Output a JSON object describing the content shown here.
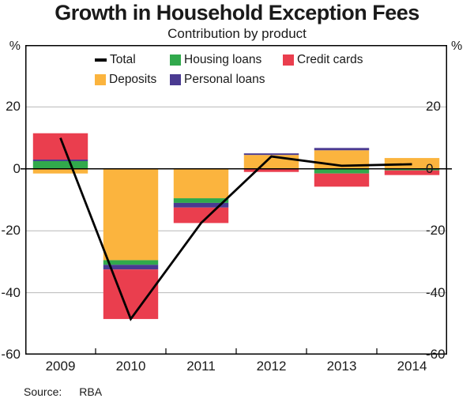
{
  "chart_data": {
    "type": "bar",
    "stacked": true,
    "title": "Growth in Household Exception Fees",
    "subtitle": "Contribution by product",
    "unit_left": "%",
    "unit_right": "%",
    "categories": [
      "2009",
      "2010",
      "2011",
      "2012",
      "2013",
      "2014"
    ],
    "series": [
      {
        "name": "Deposits",
        "color": "#FBB43E",
        "values": [
          -1.5,
          -29.5,
          -9.5,
          4.5,
          6.0,
          3.5
        ]
      },
      {
        "name": "Housing loans",
        "color": "#31A94C",
        "values": [
          2.5,
          -1.5,
          -1.5,
          0,
          -1.5,
          -0.5
        ]
      },
      {
        "name": "Personal loans",
        "color": "#4A3A91",
        "values": [
          0.5,
          -1.5,
          -1.5,
          0.5,
          0.75,
          0
        ]
      },
      {
        "name": "Credit cards",
        "color": "#EA3E4E",
        "values": [
          8.5,
          -16.0,
          -5.0,
          -1.0,
          -4.25,
          -1.5
        ]
      }
    ],
    "line_series": {
      "name": "Total",
      "color": "#000000",
      "values": [
        10.0,
        -48.5,
        -17.5,
        4.0,
        1.0,
        1.5
      ]
    },
    "ylim": [
      -60,
      40
    ],
    "yticks": [
      20,
      0,
      -20,
      -40,
      -60
    ],
    "gridlines": [
      20,
      -20,
      -40
    ],
    "grid_color": "#b8b8b8",
    "frame_color": "#000000",
    "legend_position": "top-center-inside"
  },
  "legend": {
    "rows": [
      [
        {
          "icon": "line",
          "label": "Total",
          "color": "#000000"
        },
        {
          "icon": "swatch",
          "label": "Housing loans",
          "color": "#31A94C"
        },
        {
          "icon": "swatch",
          "label": "Credit cards",
          "color": "#EA3E4E"
        }
      ],
      [
        {
          "icon": "swatch",
          "label": "Deposits",
          "color": "#FBB43E"
        },
        {
          "icon": "swatch",
          "label": "Personal loans",
          "color": "#4A3A91"
        }
      ]
    ]
  },
  "source": {
    "label": "Source:",
    "value": "RBA"
  }
}
